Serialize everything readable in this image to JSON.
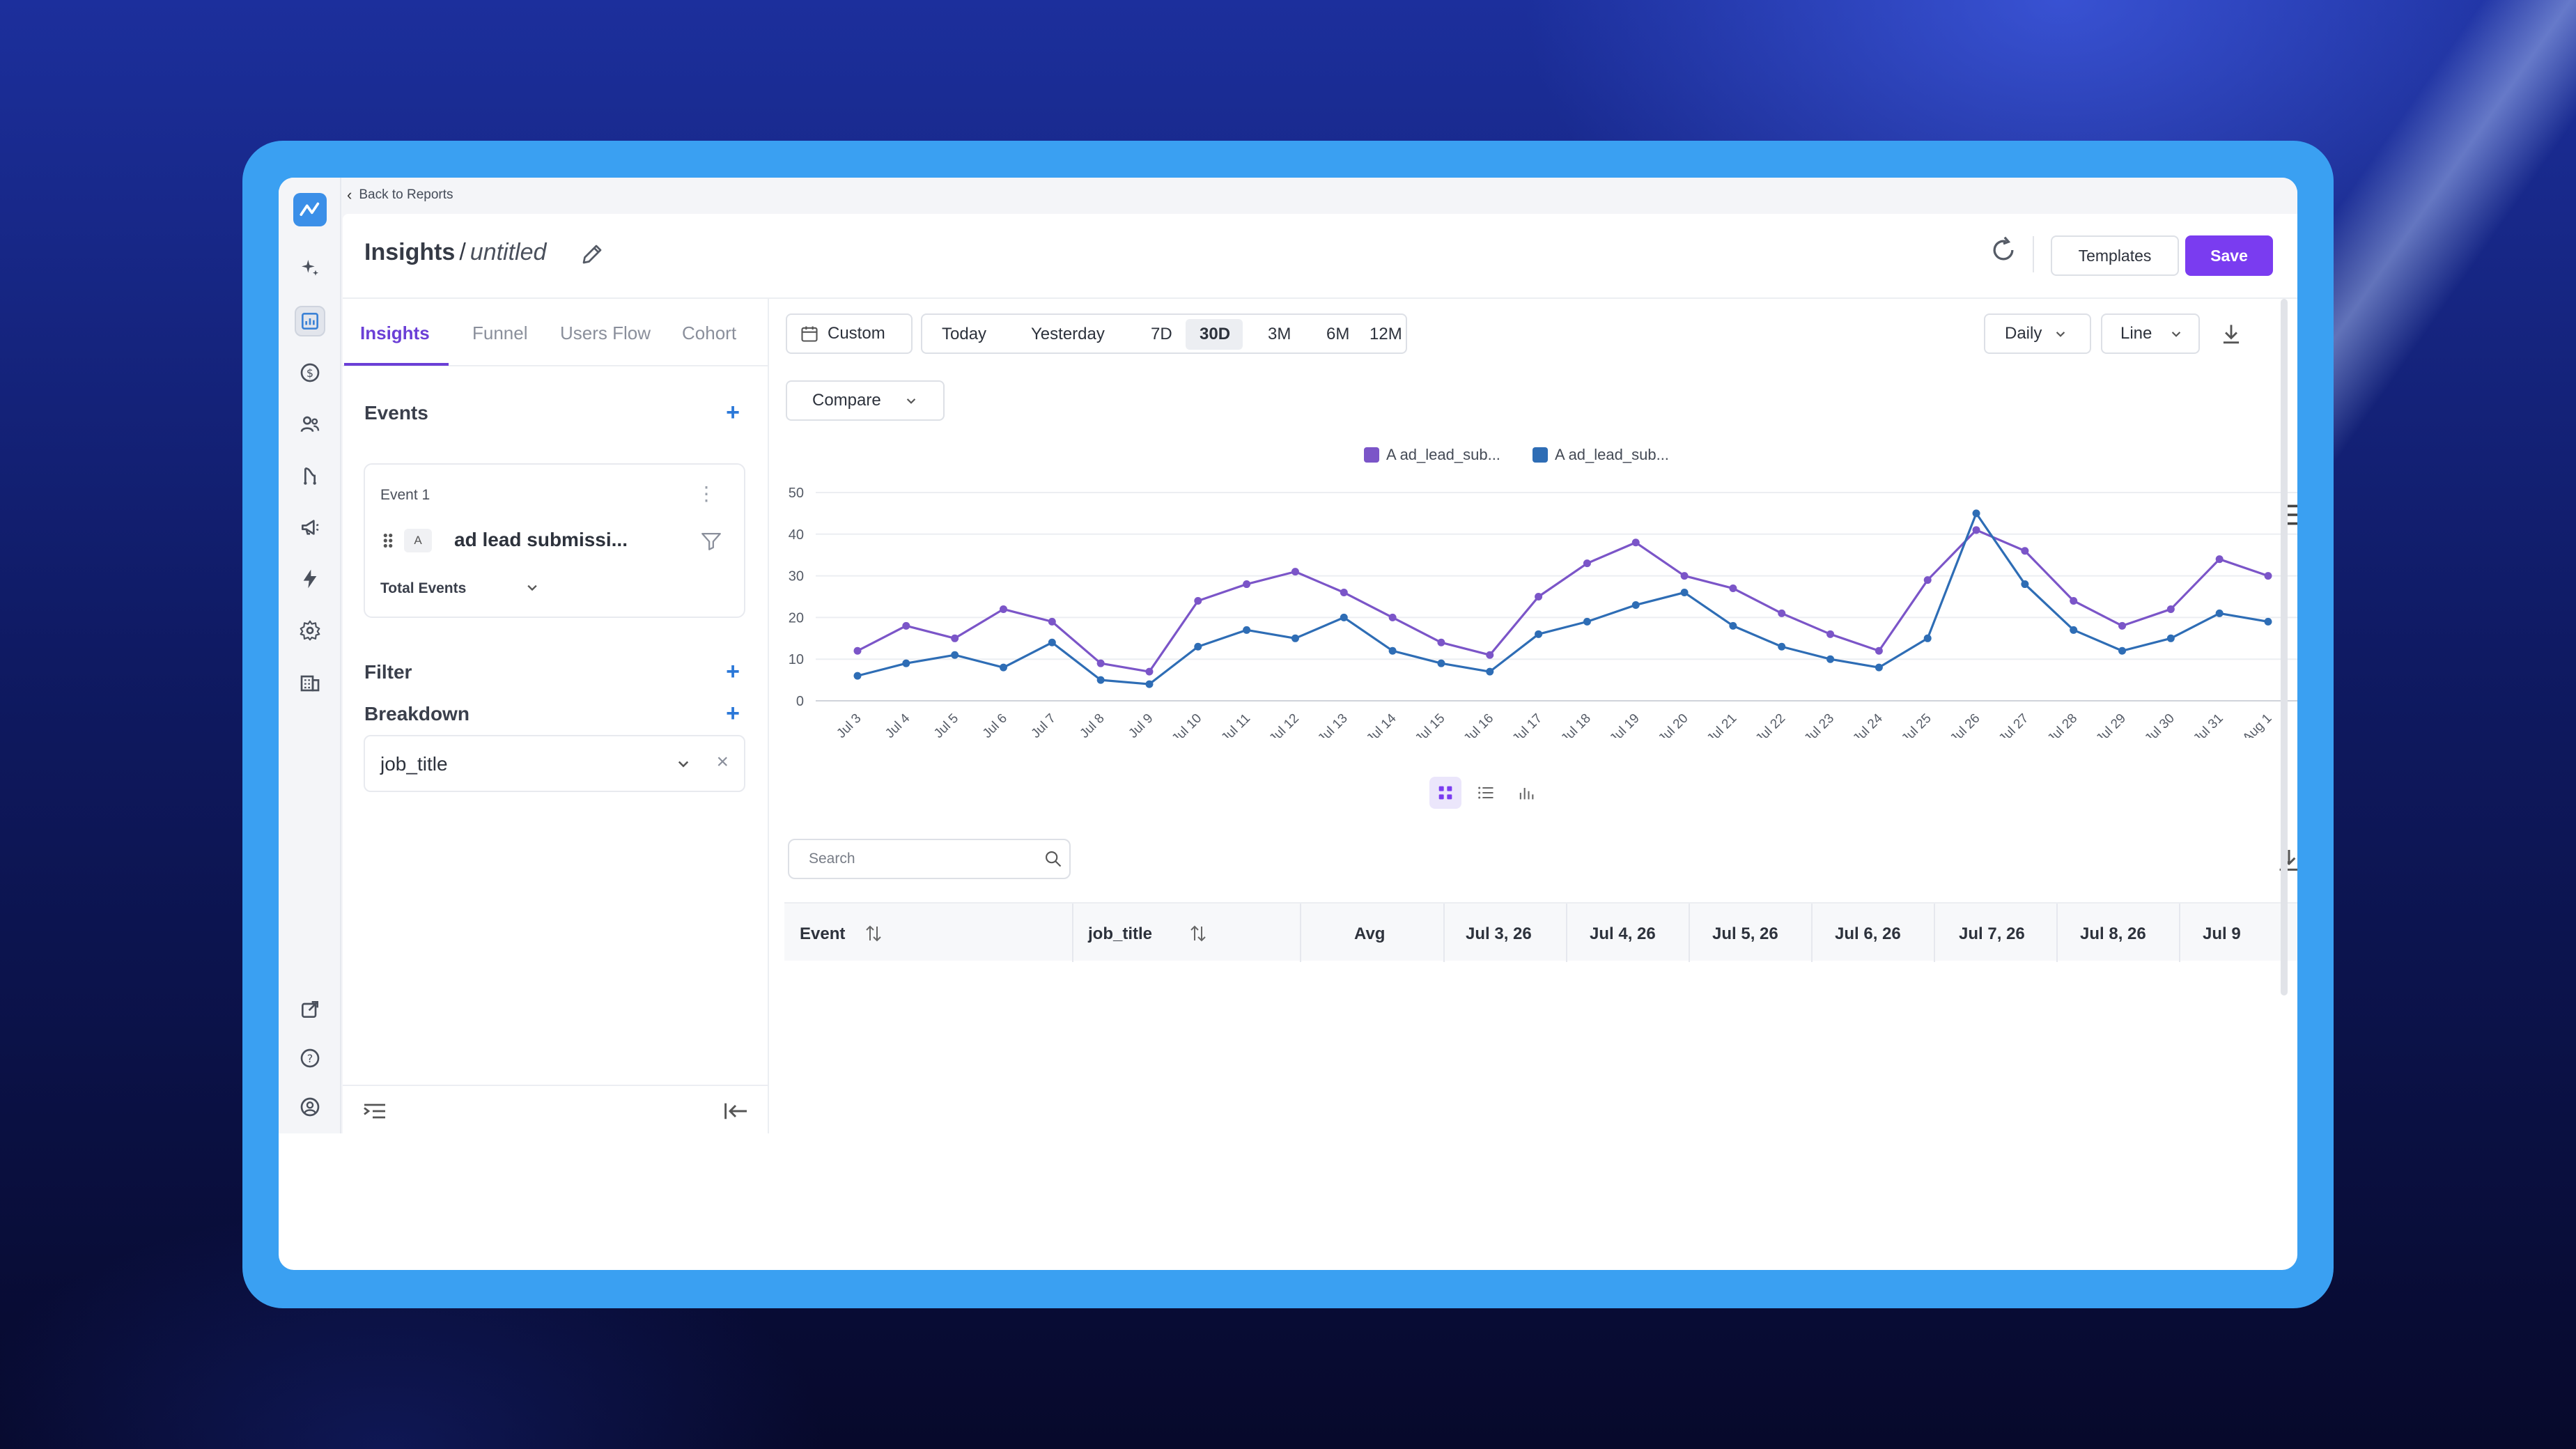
{
  "app": {
    "back_link": "Back to Reports",
    "title": "Insights",
    "title_sep": "/",
    "report_name": "untitled",
    "templates_label": "Templates",
    "save_label": "Save"
  },
  "tabs": [
    "Insights",
    "Funnel",
    "Users Flow",
    "Cohort"
  ],
  "events": {
    "heading": "Events",
    "card_title": "Event 1",
    "badge": "A",
    "event_name": "ad lead submissi...",
    "aggregation": "Total Events"
  },
  "filter": {
    "heading": "Filter"
  },
  "breakdown": {
    "heading": "Breakdown",
    "value": "job_title"
  },
  "toolbar": {
    "custom_label": "Custom",
    "ranges": [
      "Today",
      "Yesterday",
      "7D",
      "30D",
      "3M",
      "6M",
      "12M"
    ],
    "active_range": "30D",
    "interval": "Daily",
    "chart_type_select": "Line",
    "compare_label": "Compare"
  },
  "table": {
    "search_placeholder": "Search",
    "columns": [
      "Event",
      "job_title",
      "Avg",
      "Jul 3, 26",
      "Jul 4, 26",
      "Jul 5, 26",
      "Jul 6, 26",
      "Jul 7, 26",
      "Jul 8, 26",
      "Jul 9"
    ]
  },
  "colors": {
    "accent": "#7a3cf0",
    "series_1": "#7b55c8",
    "series_2": "#2e6db5",
    "frame": "#3aa0f2"
  },
  "chart_data": {
    "type": "line",
    "ylim": [
      0,
      50
    ],
    "yticks": [
      0,
      10,
      20,
      30,
      40,
      50
    ],
    "x": [
      "Jul 3",
      "Jul 4",
      "Jul 5",
      "Jul 6",
      "Jul 7",
      "Jul 8",
      "Jul 9",
      "Jul 10",
      "Jul 11",
      "Jul 12",
      "Jul 13",
      "Jul 14",
      "Jul 15",
      "Jul 16",
      "Jul 17",
      "Jul 18",
      "Jul 19",
      "Jul 20",
      "Jul 21",
      "Jul 22",
      "Jul 23",
      "Jul 24",
      "Jul 25",
      "Jul 26",
      "Jul 27",
      "Jul 28",
      "Jul 29",
      "Jul 30",
      "Jul 31",
      "Aug 1"
    ],
    "series": [
      {
        "name": "A ad_lead_sub...",
        "color": "#7b55c8",
        "values": [
          12,
          18,
          15,
          22,
          19,
          9,
          7,
          24,
          28,
          31,
          26,
          20,
          14,
          11,
          25,
          33,
          38,
          30,
          27,
          21,
          16,
          12,
          29,
          41,
          36,
          24,
          18,
          22,
          34,
          30
        ]
      },
      {
        "name": "A ad_lead_sub...",
        "color": "#2e6db5",
        "values": [
          6,
          9,
          11,
          8,
          14,
          5,
          4,
          13,
          17,
          15,
          20,
          12,
          9,
          7,
          16,
          19,
          23,
          26,
          18,
          13,
          10,
          8,
          15,
          45,
          28,
          17,
          12,
          15,
          21,
          19
        ]
      }
    ],
    "grid": true,
    "legend": "top-center"
  }
}
